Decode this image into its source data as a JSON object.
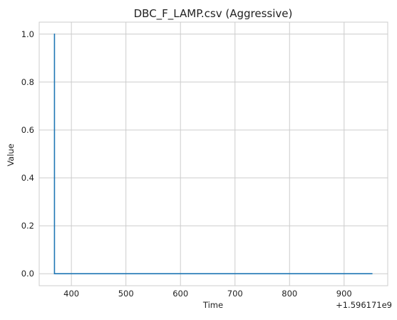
{
  "chart_data": {
    "type": "line",
    "title": "DBC_F_LAMP.csv (Aggressive)",
    "xlabel": "Time",
    "ylabel": "Value",
    "x_offset_label": "+1.596171e9",
    "x_ticks": [
      400,
      500,
      600,
      700,
      800,
      900
    ],
    "x_tick_labels": [
      "400",
      "500",
      "600",
      "700",
      "800",
      "900"
    ],
    "y_ticks": [
      0.0,
      0.2,
      0.4,
      0.6,
      0.8,
      1.0
    ],
    "y_tick_labels": [
      "0.0",
      "0.2",
      "0.4",
      "0.6",
      "0.8",
      "1.0"
    ],
    "xlim": [
      341,
      980
    ],
    "ylim": [
      -0.05,
      1.05
    ],
    "grid": true,
    "series": [
      {
        "color": "#1f77b4",
        "x": [
          368,
          369,
          369,
          952
        ],
        "y": [
          1.0,
          1.0,
          0.0,
          0.0
        ]
      }
    ]
  }
}
